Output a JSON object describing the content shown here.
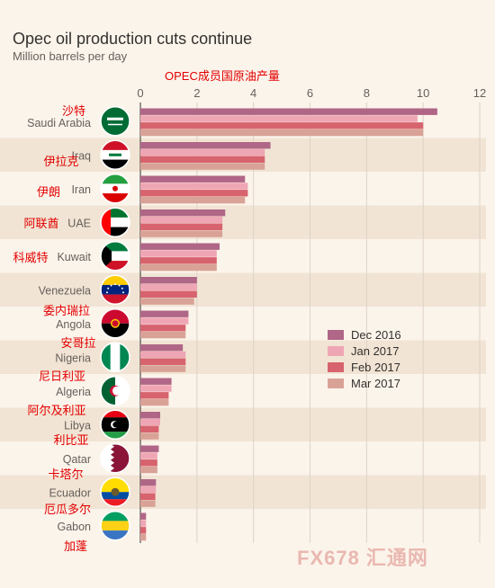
{
  "title": "Opec oil production cuts continue",
  "subtitle": "Million barrels per day",
  "cn_title": "OPEC成员国原油产量",
  "watermark": "FX678 汇通网",
  "colors": {
    "dec2016": "#b06687",
    "jan2017": "#efa6b4",
    "feb2017": "#d7636e",
    "mar2017": "#d9a297",
    "band": "#f1e4d4",
    "background": "#fbf4eb",
    "cn_label": "#e30000"
  },
  "chart_data": {
    "type": "bar",
    "orientation": "horizontal",
    "xlim": [
      0,
      12
    ],
    "x_ticks": [
      "0",
      "2",
      "4",
      "6",
      "8",
      "10",
      "12"
    ],
    "grid": true,
    "legend_position": "right",
    "categories": [
      "Saudi Arabia",
      "Iraq",
      "Iran",
      "UAE",
      "Kuwait",
      "Venezuela",
      "Angola",
      "Nigeria",
      "Algeria",
      "Libya",
      "Qatar",
      "Ecuador",
      "Gabon"
    ],
    "categories_cn": [
      "沙特",
      "伊拉克",
      "伊朗",
      "阿联酋",
      "科威特",
      "委内瑞拉",
      "安哥拉",
      "尼日利亚",
      "阿尔及利亚",
      "利比亚",
      "卡塔尔",
      "厄瓜多尔",
      "加蓬"
    ],
    "flag_icons": [
      "saudi-arabia-flag-icon",
      "iraq-flag-icon",
      "iran-flag-icon",
      "uae-flag-icon",
      "kuwait-flag-icon",
      "venezuela-flag-icon",
      "angola-flag-icon",
      "nigeria-flag-icon",
      "algeria-flag-icon",
      "libya-flag-icon",
      "qatar-flag-icon",
      "ecuador-flag-icon",
      "gabon-flag-icon"
    ],
    "series": [
      {
        "name": "Dec 2016",
        "values": [
          10.5,
          4.6,
          3.7,
          3.0,
          2.8,
          2.0,
          1.7,
          1.5,
          1.1,
          0.7,
          0.65,
          0.55,
          0.2
        ]
      },
      {
        "name": "Jan 2017",
        "values": [
          9.8,
          4.4,
          3.8,
          2.9,
          2.7,
          2.0,
          1.7,
          1.6,
          1.1,
          0.7,
          0.6,
          0.55,
          0.2
        ]
      },
      {
        "name": "Feb 2017",
        "values": [
          10.0,
          4.4,
          3.8,
          2.9,
          2.7,
          2.0,
          1.6,
          1.6,
          1.0,
          0.65,
          0.6,
          0.53,
          0.2
        ]
      },
      {
        "name": "Mar 2017",
        "values": [
          10.0,
          4.4,
          3.7,
          2.9,
          2.7,
          1.9,
          1.6,
          1.6,
          1.0,
          0.65,
          0.6,
          0.53,
          0.2
        ]
      }
    ]
  }
}
